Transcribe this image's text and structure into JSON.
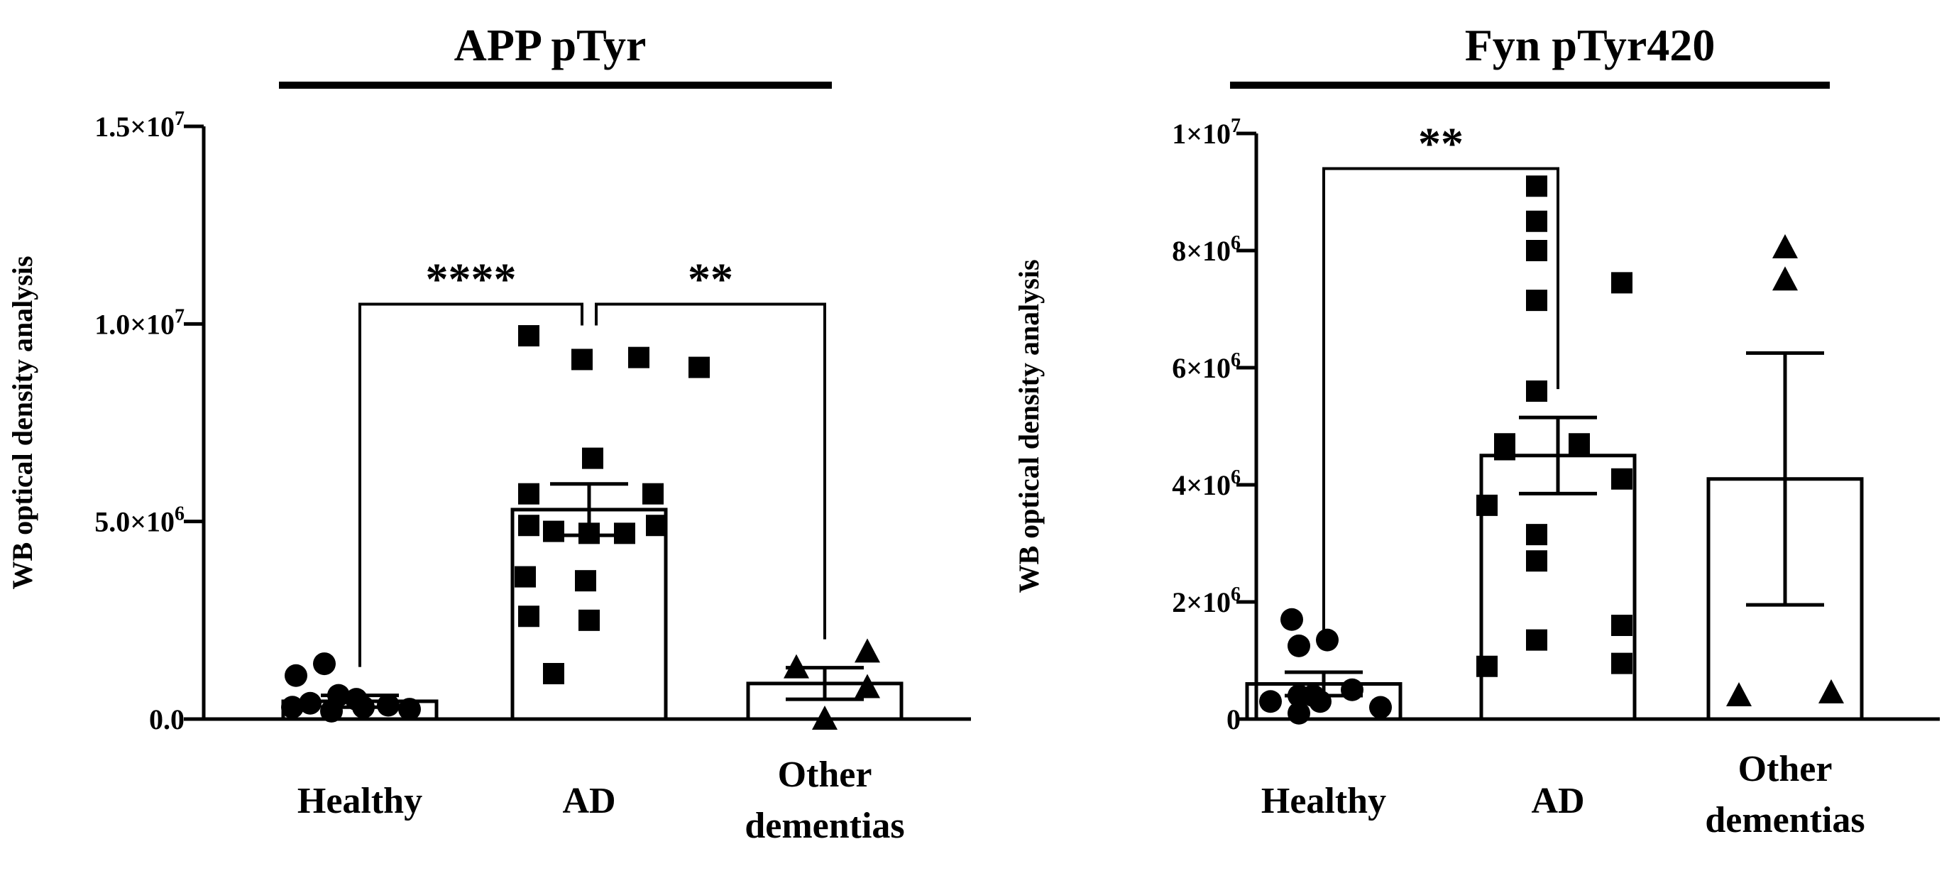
{
  "chart_data": [
    {
      "type": "bar",
      "title": "APP pTyr",
      "ylabel": "WB optical density analysis",
      "ylim": [
        0,
        15000000
      ],
      "yticks": [
        {
          "value": 0,
          "base": "0.0",
          "exp": ""
        },
        {
          "value": 5000000,
          "base": "5.0×10",
          "exp": "6"
        },
        {
          "value": 10000000,
          "base": "1.0×10",
          "exp": "7"
        },
        {
          "value": 15000000,
          "base": "1.5×10",
          "exp": "7"
        }
      ],
      "categories": [
        {
          "lines": [
            "Healthy"
          ],
          "marker": "circle",
          "mean": 450000,
          "sem": 150000,
          "points": [
            1100000,
            1400000,
            600000,
            500000,
            300000,
            400000,
            200000,
            300000,
            350000,
            250000
          ]
        },
        {
          "lines": [
            "AD"
          ],
          "marker": "square",
          "mean": 5300000,
          "sem": 650000,
          "points": [
            9700000,
            9100000,
            9150000,
            8900000,
            6600000,
            5700000,
            5700000,
            4900000,
            4900000,
            4750000,
            4700000,
            4700000,
            3600000,
            3500000,
            2600000,
            2500000,
            1150000
          ]
        },
        {
          "lines": [
            "Other",
            "dementias"
          ],
          "marker": "triangle",
          "mean": 900000,
          "sem": 400000,
          "points": [
            1300000,
            1700000,
            800000,
            0
          ]
        }
      ],
      "significance": [
        {
          "label": "****",
          "from": 0,
          "to": 1,
          "level": 10500000
        },
        {
          "label": "**",
          "from": 1,
          "to": 2,
          "level": 10500000
        }
      ]
    },
    {
      "type": "bar",
      "title": "Fyn pTyr420",
      "ylabel": "WB optical density analysis",
      "ylim": [
        0,
        10000000
      ],
      "yticks": [
        {
          "value": 0,
          "base": "0",
          "exp": ""
        },
        {
          "value": 2000000,
          "base": "2×10",
          "exp": "6"
        },
        {
          "value": 4000000,
          "base": "4×10",
          "exp": "6"
        },
        {
          "value": 6000000,
          "base": "6×10",
          "exp": "6"
        },
        {
          "value": 8000000,
          "base": "8×10",
          "exp": "6"
        },
        {
          "value": 10000000,
          "base": "1×10",
          "exp": "7"
        }
      ],
      "categories": [
        {
          "lines": [
            "Healthy"
          ],
          "marker": "circle",
          "mean": 600000,
          "sem": 200000,
          "points": [
            1700000,
            1350000,
            1250000,
            500000,
            400000,
            300000,
            400000,
            300000,
            100000,
            200000
          ]
        },
        {
          "lines": [
            "AD"
          ],
          "marker": "square",
          "mean": 4500000,
          "sem": 650000,
          "points": [
            9100000,
            8500000,
            8000000,
            7150000,
            7450000,
            5600000,
            4700000,
            4700000,
            4600000,
            4100000,
            3650000,
            3150000,
            2700000,
            1600000,
            1350000,
            900000,
            950000
          ]
        },
        {
          "lines": [
            "Other",
            "dementias"
          ],
          "marker": "triangle",
          "mean": 4100000,
          "sem": 2150000,
          "points": [
            8050000,
            7500000,
            400000,
            450000
          ]
        }
      ],
      "significance": [
        {
          "label": "**",
          "from": 0,
          "to": 1,
          "level": 9400000
        }
      ]
    }
  ]
}
